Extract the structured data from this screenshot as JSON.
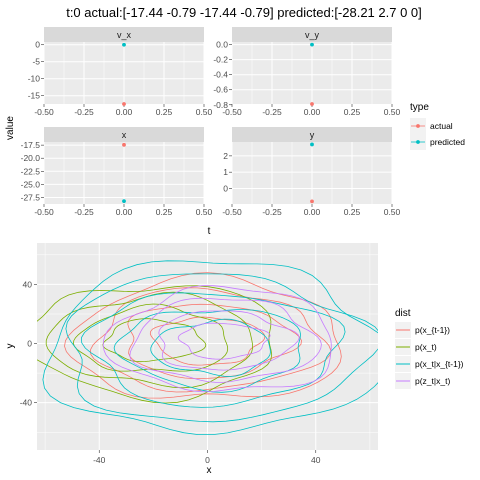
{
  "title": "t:0 actual:[-17.44 -0.79 -17.44 -0.79] predicted:[-28.21 2.7 0 0]",
  "colors": {
    "actual": "#F8766D",
    "predicted": "#00BFC4",
    "panel_bg": "#EBEBEB",
    "strip_bg": "#D9D9D9",
    "grid": "#ffffff",
    "dist": [
      "#F8766D",
      "#7CAE00",
      "#00BFC4",
      "#C77CFF"
    ]
  },
  "chart_data": [
    {
      "type": "scatter",
      "facet_by": [
        "v_x",
        "v_y",
        "x",
        "y"
      ],
      "xlabel": "t",
      "ylabel": "value",
      "legend": {
        "title": "type",
        "entries": [
          "actual",
          "predicted"
        ],
        "placement": "right"
      },
      "grid": true,
      "x_ticks": [
        "-0.50",
        "-0.25",
        "0.00",
        "0.25",
        "0.50"
      ],
      "xlim": [
        -0.5,
        0.5
      ],
      "panels": [
        {
          "label": "v_x",
          "ylim": [
            -17.44,
            0.8
          ],
          "y_ticks": [
            0,
            -5,
            -10,
            -15
          ],
          "y_tick_labels": [
            "0",
            "-5",
            "-10",
            "-15"
          ],
          "actual": {
            "x": 0,
            "y": -17.44
          },
          "predicted": {
            "x": 0,
            "y": 0
          }
        },
        {
          "label": "v_y",
          "ylim": [
            -0.79,
            0.035
          ],
          "y_ticks": [
            0,
            -0.2,
            -0.4,
            -0.6,
            -0.8
          ],
          "y_tick_labels": [
            "0.0",
            "-0.2",
            "-0.4",
            "-0.6",
            "-0.8"
          ],
          "actual": {
            "x": 0,
            "y": -0.79
          },
          "predicted": {
            "x": 0,
            "y": 0
          }
        },
        {
          "label": "x",
          "ylim": [
            -28.75,
            -16.9
          ],
          "y_ticks": [
            -17.5,
            -20,
            -22.5,
            -25,
            -27.5
          ],
          "y_tick_labels": [
            "-17.5",
            "-20.0",
            "-22.5",
            "-25.0",
            "-27.5"
          ],
          "actual": {
            "x": 0,
            "y": -17.44
          },
          "predicted": {
            "x": 0,
            "y": -28.21
          }
        },
        {
          "label": "y",
          "ylim": [
            -0.95,
            2.85
          ],
          "y_ticks": [
            0,
            1,
            2
          ],
          "y_tick_labels": [
            "0",
            "1",
            "2"
          ],
          "actual": {
            "x": 0,
            "y": -0.79
          },
          "predicted": {
            "x": 0,
            "y": 2.7
          }
        }
      ]
    },
    {
      "type": "contour",
      "xlabel": "x",
      "ylabel": "y",
      "xlim": [
        -63,
        63
      ],
      "ylim": [
        -72,
        68
      ],
      "x_ticks": [
        -40,
        0,
        40
      ],
      "y_ticks": [
        40,
        0,
        -40
      ],
      "grid": true,
      "legend": {
        "title": "dist",
        "placement": "right"
      },
      "series": [
        {
          "name": "p(x_{t-1})",
          "center": [
            0,
            2
          ],
          "levels": [
            [
              20,
              16
            ],
            [
              31,
              25
            ],
            [
              42,
              34
            ],
            [
              50,
              41
            ]
          ]
        },
        {
          "name": "p(x_t)",
          "center": [
            -20,
            2
          ],
          "levels": [
            [
              18,
              14
            ],
            [
              28,
              22
            ],
            [
              38,
              30
            ],
            [
              46,
              38
            ]
          ]
        },
        {
          "name": "p(x_t|x_{t-1})",
          "center": [
            2,
            -3
          ],
          "levels": [
            [
              22,
              18
            ],
            [
              34,
              27
            ],
            [
              46,
              38
            ],
            [
              56,
              50
            ],
            [
              62,
              58
            ]
          ]
        },
        {
          "name": "p(z_t|x_t)",
          "center": [
            6,
            2
          ],
          "levels": [
            [
              16,
              12
            ],
            [
              25,
              20
            ],
            [
              34,
              28
            ],
            [
              42,
              35
            ]
          ]
        }
      ]
    }
  ]
}
